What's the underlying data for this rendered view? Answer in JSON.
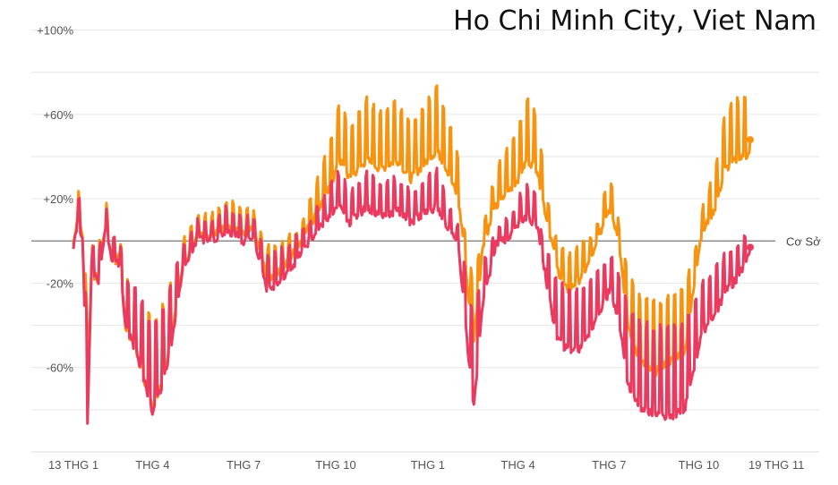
{
  "chart_data": {
    "type": "line",
    "title": "Ho Chi Minh City, Viet Nam",
    "baseline_label": "Cơ Sở",
    "y_ticks": [
      {
        "value": 100,
        "label": "+100%"
      },
      {
        "value": 60,
        "label": "+60%"
      },
      {
        "value": 20,
        "label": "+20%"
      },
      {
        "value": -20,
        "label": "-20%"
      },
      {
        "value": -60,
        "label": "-60%"
      }
    ],
    "x_ticks": [
      {
        "date": "2020-01-13",
        "label": "13 THG 1"
      },
      {
        "date": "2020-04-01",
        "label": "THG 4"
      },
      {
        "date": "2020-07-01",
        "label": "THG 7"
      },
      {
        "date": "2020-10-01",
        "label": "THG 10"
      },
      {
        "date": "2021-01-01",
        "label": "THG 1"
      },
      {
        "date": "2021-04-01",
        "label": "THG 4"
      },
      {
        "date": "2021-07-01",
        "label": "THG 7"
      },
      {
        "date": "2021-10-01",
        "label": "THG 10"
      },
      {
        "date": "2021-11-19",
        "label": "19 THG 11"
      }
    ],
    "ylim": [
      -100,
      110
    ],
    "grid": true,
    "series": [
      {
        "color": "#f7930e",
        "points": [
          [
            "2020-01-13",
            0
          ],
          [
            "2020-01-17",
            15
          ],
          [
            "2020-01-22",
            5
          ],
          [
            "2020-01-27",
            -60
          ],
          [
            "2020-01-31",
            -12
          ],
          [
            "2020-02-07",
            -15
          ],
          [
            "2020-02-14",
            10
          ],
          [
            "2020-02-21",
            -8
          ],
          [
            "2020-02-28",
            -5
          ],
          [
            "2020-03-05",
            -35
          ],
          [
            "2020-03-15",
            -45
          ],
          [
            "2020-03-25",
            -60
          ],
          [
            "2020-04-01",
            -70
          ],
          [
            "2020-04-10",
            -60
          ],
          [
            "2020-04-20",
            -40
          ],
          [
            "2020-05-01",
            -10
          ],
          [
            "2020-05-15",
            5
          ],
          [
            "2020-06-01",
            5
          ],
          [
            "2020-06-15",
            10
          ],
          [
            "2020-07-01",
            5
          ],
          [
            "2020-07-10",
            8
          ],
          [
            "2020-07-25",
            -15
          ],
          [
            "2020-08-10",
            -10
          ],
          [
            "2020-08-25",
            0
          ],
          [
            "2020-09-10",
            15
          ],
          [
            "2020-09-25",
            30
          ],
          [
            "2020-10-05",
            45
          ],
          [
            "2020-10-15",
            35
          ],
          [
            "2020-11-01",
            45
          ],
          [
            "2020-11-15",
            40
          ],
          [
            "2020-12-01",
            45
          ],
          [
            "2020-12-15",
            35
          ],
          [
            "2021-01-01",
            45
          ],
          [
            "2021-01-10",
            50
          ],
          [
            "2021-01-20",
            40
          ],
          [
            "2021-01-31",
            25
          ],
          [
            "2021-02-05",
            5
          ],
          [
            "2021-02-10",
            -20
          ],
          [
            "2021-02-16",
            -40
          ],
          [
            "2021-02-25",
            0
          ],
          [
            "2021-03-10",
            20
          ],
          [
            "2021-03-25",
            30
          ],
          [
            "2021-04-01",
            35
          ],
          [
            "2021-04-10",
            45
          ],
          [
            "2021-04-20",
            40
          ],
          [
            "2021-05-01",
            10
          ],
          [
            "2021-05-10",
            -10
          ],
          [
            "2021-05-20",
            -20
          ],
          [
            "2021-06-01",
            -15
          ],
          [
            "2021-06-15",
            -5
          ],
          [
            "2021-07-01",
            20
          ],
          [
            "2021-07-10",
            5
          ],
          [
            "2021-07-20",
            -35
          ],
          [
            "2021-08-01",
            -50
          ],
          [
            "2021-08-15",
            -55
          ],
          [
            "2021-08-31",
            -50
          ],
          [
            "2021-09-15",
            -45
          ],
          [
            "2021-10-01",
            5
          ],
          [
            "2021-10-15",
            20
          ],
          [
            "2021-10-25",
            40
          ],
          [
            "2021-11-05",
            45
          ],
          [
            "2021-11-19",
            48
          ]
        ]
      },
      {
        "color": "#ea3a5f",
        "points": [
          [
            "2020-01-13",
            0
          ],
          [
            "2020-01-17",
            12
          ],
          [
            "2020-01-22",
            5
          ],
          [
            "2020-01-27",
            -77
          ],
          [
            "2020-01-31",
            -12
          ],
          [
            "2020-02-07",
            -15
          ],
          [
            "2020-02-14",
            8
          ],
          [
            "2020-02-21",
            -8
          ],
          [
            "2020-02-28",
            -8
          ],
          [
            "2020-03-05",
            -35
          ],
          [
            "2020-03-15",
            -45
          ],
          [
            "2020-03-25",
            -60
          ],
          [
            "2020-04-01",
            -72
          ],
          [
            "2020-04-10",
            -62
          ],
          [
            "2020-04-20",
            -42
          ],
          [
            "2020-05-01",
            -12
          ],
          [
            "2020-05-15",
            2
          ],
          [
            "2020-06-01",
            3
          ],
          [
            "2020-06-15",
            8
          ],
          [
            "2020-07-01",
            2
          ],
          [
            "2020-07-10",
            5
          ],
          [
            "2020-07-25",
            -20
          ],
          [
            "2020-08-10",
            -15
          ],
          [
            "2020-08-25",
            -5
          ],
          [
            "2020-09-10",
            5
          ],
          [
            "2020-09-25",
            15
          ],
          [
            "2020-10-05",
            20
          ],
          [
            "2020-10-15",
            12
          ],
          [
            "2020-11-01",
            20
          ],
          [
            "2020-11-15",
            15
          ],
          [
            "2020-12-01",
            18
          ],
          [
            "2020-12-15",
            12
          ],
          [
            "2021-01-01",
            18
          ],
          [
            "2021-01-10",
            20
          ],
          [
            "2021-01-20",
            10
          ],
          [
            "2021-01-31",
            0
          ],
          [
            "2021-02-05",
            -20
          ],
          [
            "2021-02-10",
            -45
          ],
          [
            "2021-02-16",
            -70
          ],
          [
            "2021-02-25",
            -25
          ],
          [
            "2021-03-10",
            0
          ],
          [
            "2021-03-25",
            5
          ],
          [
            "2021-04-01",
            10
          ],
          [
            "2021-04-10",
            15
          ],
          [
            "2021-04-20",
            10
          ],
          [
            "2021-05-01",
            -20
          ],
          [
            "2021-05-10",
            -40
          ],
          [
            "2021-05-20",
            -45
          ],
          [
            "2021-06-01",
            -45
          ],
          [
            "2021-06-15",
            -35
          ],
          [
            "2021-07-01",
            -20
          ],
          [
            "2021-07-10",
            -30
          ],
          [
            "2021-07-20",
            -60
          ],
          [
            "2021-08-01",
            -70
          ],
          [
            "2021-08-15",
            -72
          ],
          [
            "2021-08-31",
            -74
          ],
          [
            "2021-09-15",
            -70
          ],
          [
            "2021-10-01",
            -40
          ],
          [
            "2021-10-15",
            -30
          ],
          [
            "2021-10-25",
            -20
          ],
          [
            "2021-11-05",
            -15
          ],
          [
            "2021-11-19",
            -3
          ]
        ]
      }
    ]
  }
}
